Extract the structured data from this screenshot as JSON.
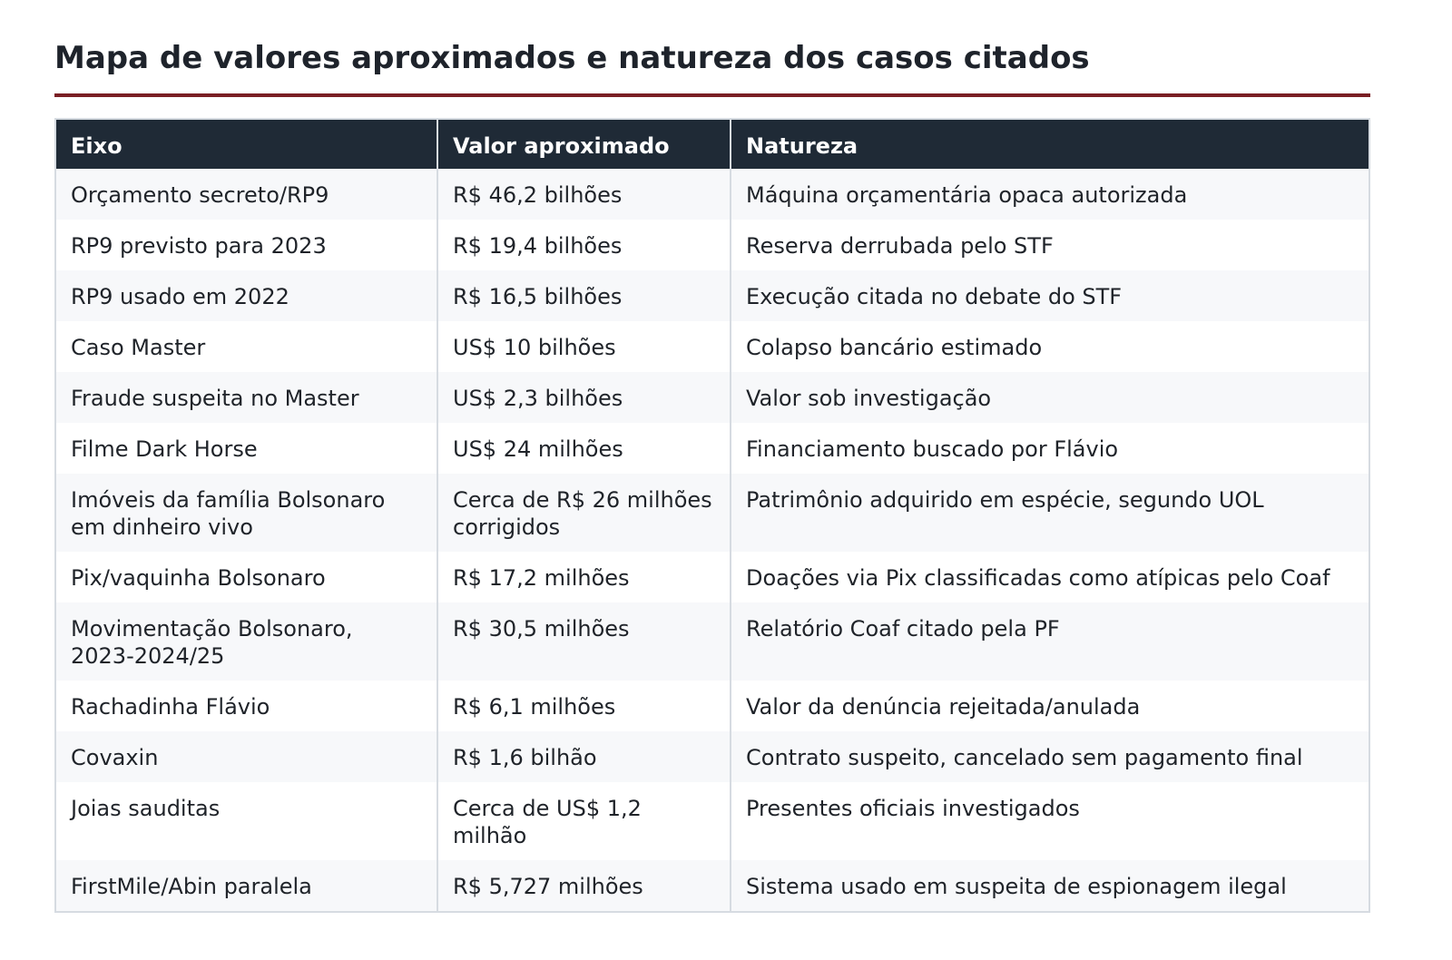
{
  "header": {
    "title": "Mapa de valores aproximados e natureza dos casos citados"
  },
  "table": {
    "columns": [
      "Eixo",
      "Valor aproximado",
      "Natureza"
    ],
    "rows": [
      [
        "Orçamento secreto/RP9",
        "R$ 46,2 bilhões",
        "Máquina orçamentária opaca autorizada"
      ],
      [
        "RP9 previsto para 2023",
        "R$ 19,4 bilhões",
        "Reserva derrubada pelo STF"
      ],
      [
        "RP9 usado em 2022",
        "R$ 16,5 bilhões",
        "Execução citada no debate do STF"
      ],
      [
        "Caso Master",
        "US$ 10 bilhões",
        "Colapso bancário estimado"
      ],
      [
        "Fraude suspeita no Master",
        "US$ 2,3 bilhões",
        "Valor sob investigação"
      ],
      [
        "Filme Dark Horse",
        "US$ 24 milhões",
        "Financiamento buscado por Flávio"
      ],
      [
        "Imóveis da família Bolsonaro em dinheiro vivo",
        "Cerca de R$ 26 milhões corrigidos",
        "Patrimônio adquirido em espécie, segundo UOL"
      ],
      [
        "Pix/vaquinha Bolsonaro",
        "R$ 17,2 milhões",
        "Doações via Pix classificadas como atípicas pelo Coaf"
      ],
      [
        "Movimentação Bolsonaro, 2023-2024/25",
        "R$ 30,5 milhões",
        "Relatório Coaf citado pela PF"
      ],
      [
        "Rachadinha Flávio",
        "R$ 6,1 milhões",
        "Valor da denúncia rejeitada/anulada"
      ],
      [
        "Covaxin",
        "R$ 1,6 bilhão",
        "Contrato suspeito, cancelado sem pagamento final"
      ],
      [
        "Joias sauditas",
        "Cerca de US$ 1,2 milhão",
        "Presentes oficiais investigados"
      ],
      [
        "FirstMile/Abin paralela",
        "R$ 5,727 milhões",
        "Sistema usado em suspeita de espionagem ilegal"
      ]
    ]
  }
}
